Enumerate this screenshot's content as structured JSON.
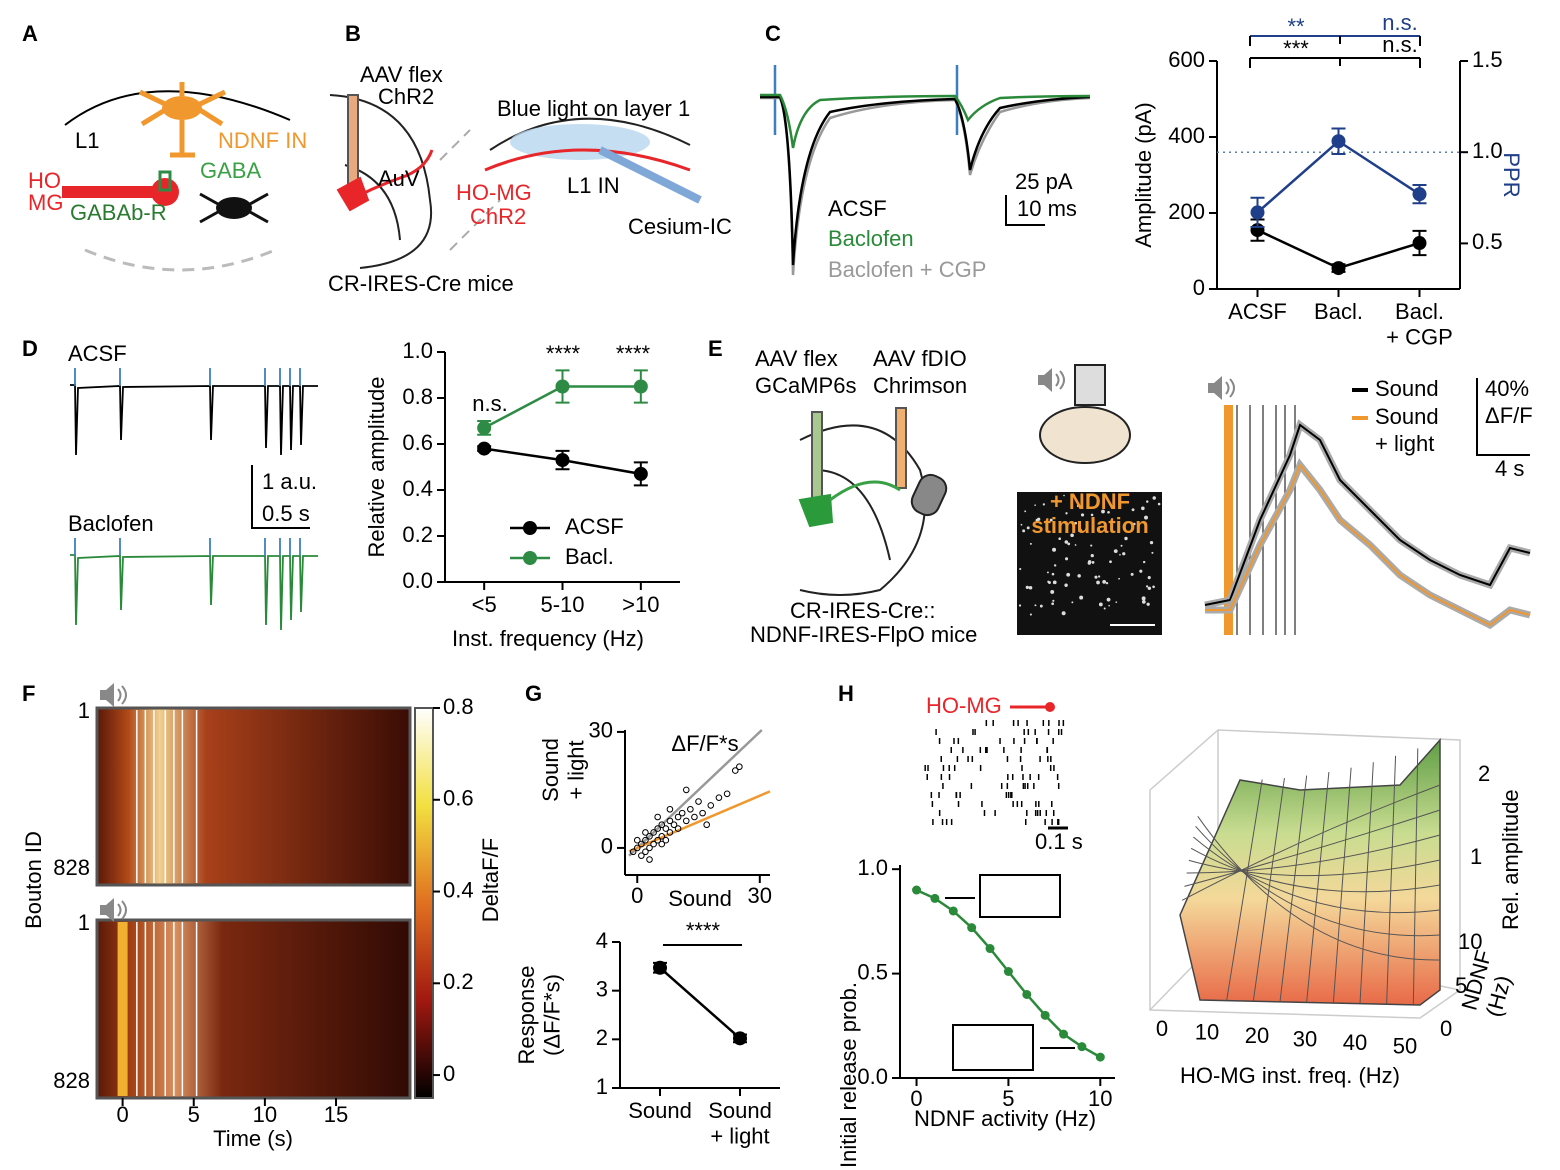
{
  "panel_labels": [
    "A",
    "B",
    "C",
    "D",
    "E",
    "F",
    "G",
    "H"
  ],
  "panel_a": [
    "L1",
    "NDNF IN",
    "GABA",
    "HO",
    "MG",
    "GABAb-R"
  ],
  "panel_b": [
    "AAV flex",
    "ChR2",
    "Blue light on layer 1",
    "AuV",
    "HO-MG",
    "ChR2",
    "L1 IN",
    "Cesium-IC",
    "CR-IRES-Cre mice"
  ],
  "panel_c": [
    "25 pA",
    "10 ms",
    "ACSF",
    "Baclofen",
    "Baclofen + CGP"
  ],
  "panel_d": [
    "ACSF",
    "Baclofen",
    "1 a.u.",
    "0.5 s"
  ],
  "panel_e": [
    "AAV flex",
    "GCaMP6s",
    "AAV fDIO",
    "Chrimson",
    "CR-IRES-Cre::",
    "NDNF-IRES-FlpO mice",
    "+ NDNF",
    "stimulation",
    "Sound",
    "Sound",
    "+ light",
    "40%",
    "ΔF/F",
    "4 s"
  ],
  "panel_h": [
    "HO-MG",
    "0.1 s"
  ],
  "panel_h_3d": {
    "xlabel": "HO-MG inst. freq. (Hz)",
    "xticks": [
      0,
      10,
      20,
      30,
      40,
      50
    ],
    "ylabel": "NDNF\n(Hz)",
    "yticks": [
      0,
      5,
      10
    ],
    "zlabel": "Rel. amplitude",
    "zticks": [
      1,
      2
    ]
  },
  "chart_data": [
    {
      "type": "line",
      "ylabel": "Amplitude (pA)",
      "y2label": "PPR",
      "categories": [
        "ACSF",
        "Bacl.",
        "Bacl.\n+ CGP"
      ],
      "ylim": [
        0,
        600
      ],
      "yticks": [
        0,
        200,
        400,
        600
      ],
      "y2lim": [
        0.25,
        1.5
      ],
      "y2ticks": [
        0.5,
        {
          "value": 1,
          "label": "1.0"
        },
        1.5
      ],
      "reference_y2": 1,
      "series": [
        {
          "color": "#000000",
          "values": [
            155,
            55,
            121
          ],
          "errors": [
            28,
            10,
            32
          ]
        },
        {
          "color": "#1f3f8a",
          "axis": "y2",
          "values": [
            0.67,
            1.06,
            0.77
          ],
          "errors": [
            0.08,
            0.07,
            0.05
          ]
        }
      ],
      "annotations": [
        "**",
        "n.s.",
        "***",
        "n.s."
      ]
    },
    {
      "type": "line",
      "ylabel": "Relative amplitude",
      "xlabel": "Inst. frequency (Hz)",
      "categories": [
        "<5",
        "5-10",
        ">10"
      ],
      "ylim": [
        0,
        1
      ],
      "yticks": [
        {
          "value": 0,
          "label": "0.0"
        },
        0.2,
        0.4,
        0.6,
        0.8,
        {
          "value": 1,
          "label": "1.0"
        }
      ],
      "series": [
        {
          "name": "ACSF",
          "color": "#000000",
          "values": [
            0.58,
            0.53,
            0.47
          ],
          "errors": [
            0.01,
            0.04,
            0.05
          ]
        },
        {
          "name": "Bacl.",
          "color": "#2e8b45",
          "values": [
            0.67,
            0.85,
            0.85
          ],
          "errors": [
            0.03,
            0.07,
            0.07
          ]
        }
      ],
      "annotations": [
        "n.s.",
        "****",
        "****"
      ],
      "legend": "lower-right"
    },
    {
      "type": "scatter",
      "title": "ΔF/F*s",
      "xlabel": "Sound",
      "ylabel": "Sound\n+ light",
      "xlim": [
        -3,
        32.5
      ],
      "ylim": [
        -7,
        30.5
      ],
      "xticks": [
        0,
        30
      ],
      "yticks": [
        0,
        30
      ],
      "x": [
        0,
        1,
        1,
        2,
        2,
        3,
        3,
        4,
        4,
        5,
        5,
        6,
        6,
        7,
        7,
        8,
        8,
        9,
        10,
        10,
        11,
        12,
        13,
        14,
        15,
        16,
        18,
        20,
        22,
        24,
        -1,
        0,
        2,
        3,
        5,
        6,
        8,
        12,
        17,
        25
      ],
      "y": [
        0,
        -2,
        1,
        2,
        -1,
        3,
        0,
        4,
        1,
        5,
        2,
        6,
        3,
        5,
        2,
        7,
        4,
        6,
        8,
        5,
        9,
        7,
        10,
        8,
        12,
        9,
        11,
        13,
        14,
        20,
        -1,
        2,
        4,
        -3,
        8,
        1,
        10,
        15,
        6,
        21
      ],
      "color": "#000000",
      "fits": [
        {
          "color": "#999999",
          "slope": 1,
          "intercept": 0
        },
        {
          "color": "#f0982e",
          "slope": 0.45,
          "intercept": 0
        }
      ]
    },
    {
      "type": "line",
      "ylabel": "Response\n(ΔF/F*s)",
      "categories": [
        "Sound",
        "Sound\n+ light"
      ],
      "ylim": [
        1,
        4
      ],
      "yticks": [
        1,
        2,
        3,
        4
      ],
      "series": [
        {
          "color": "#000000",
          "values": [
            3.47,
            2.02
          ],
          "errors": [
            0.1,
            0.08
          ]
        }
      ],
      "annotations": [
        "****"
      ]
    },
    {
      "type": "line",
      "xlabel": "NDNF activity (Hz)",
      "ylabel": "Initial release prob.",
      "x": [
        0,
        1,
        2,
        3,
        4,
        5,
        6,
        7,
        8,
        9,
        10
      ],
      "xlim": [
        -0.9,
        10.8
      ],
      "ylim": [
        0,
        1.02
      ],
      "xticks": [
        0,
        5,
        10
      ],
      "yticks": [
        {
          "value": 0,
          "label": "0.0"
        },
        0.5,
        {
          "value": 1,
          "label": "1.0"
        }
      ],
      "series": [
        {
          "color": "#2a8a3a",
          "values": [
            0.9,
            0.86,
            0.8,
            0.72,
            0.62,
            0.51,
            0.4,
            0.3,
            0.21,
            0.15,
            0.1
          ]
        }
      ]
    },
    {
      "type": "heatmap",
      "xlabel": "Time (s)",
      "ylabel": "Bouton ID",
      "colorbar_label": "DeltaF/F",
      "xlim": [
        -1.8,
        20.2
      ],
      "xticks": [
        0,
        5,
        10,
        15
      ],
      "row_labels": [
        1,
        828
      ],
      "clim": [
        -0.05,
        0.8
      ],
      "cticks": [
        0,
        0.2,
        0.4,
        0.6,
        0.8
      ],
      "stimulus_times": [
        1,
        1.6,
        2.2,
        3,
        3.6,
        4.2,
        5.2
      ],
      "light_time": 0
    }
  ]
}
